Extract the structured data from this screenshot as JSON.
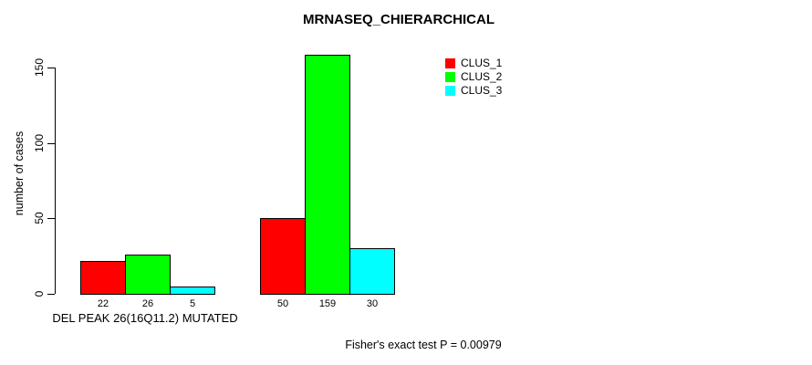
{
  "title": "MRNASEQ_CHIERARCHICAL",
  "y_axis": {
    "label": "number of cases",
    "ticks": [
      0,
      50,
      100,
      150
    ]
  },
  "x_axis": {
    "label": "DEL PEAK 26(16Q11.2) MUTATED"
  },
  "footnote": "Fisher's exact test P = 0.00979",
  "legend": {
    "items": [
      {
        "label": "CLUS_1",
        "color": "#FF0000"
      },
      {
        "label": "CLUS_2",
        "color": "#00FF00"
      },
      {
        "label": "CLUS_3",
        "color": "#00FFFF"
      }
    ]
  },
  "chart_data": {
    "type": "bar",
    "title": "MRNASEQ_CHIERARCHICAL",
    "ylabel": "number of cases",
    "xlabel": "DEL PEAK 26(16Q11.2) MUTATED",
    "ylim": [
      0,
      150
    ],
    "ytick_values": [
      0,
      50,
      100,
      150
    ],
    "grid": false,
    "legend_position": "top-right",
    "bar_borders": "#000000",
    "categories": [
      "DEL PEAK 26(16Q11.2) MUTATED",
      ""
    ],
    "series": [
      {
        "name": "CLUS_1",
        "color": "#FF0000",
        "values": [
          22,
          50
        ]
      },
      {
        "name": "CLUS_2",
        "color": "#00FF00",
        "values": [
          26,
          159
        ]
      },
      {
        "name": "CLUS_3",
        "color": "#00FFFF",
        "values": [
          5,
          30
        ]
      }
    ],
    "bar_value_labels": [
      [
        22,
        26,
        5
      ],
      [
        50,
        159,
        30
      ]
    ],
    "annotation": "Fisher's exact test P = 0.00979"
  }
}
